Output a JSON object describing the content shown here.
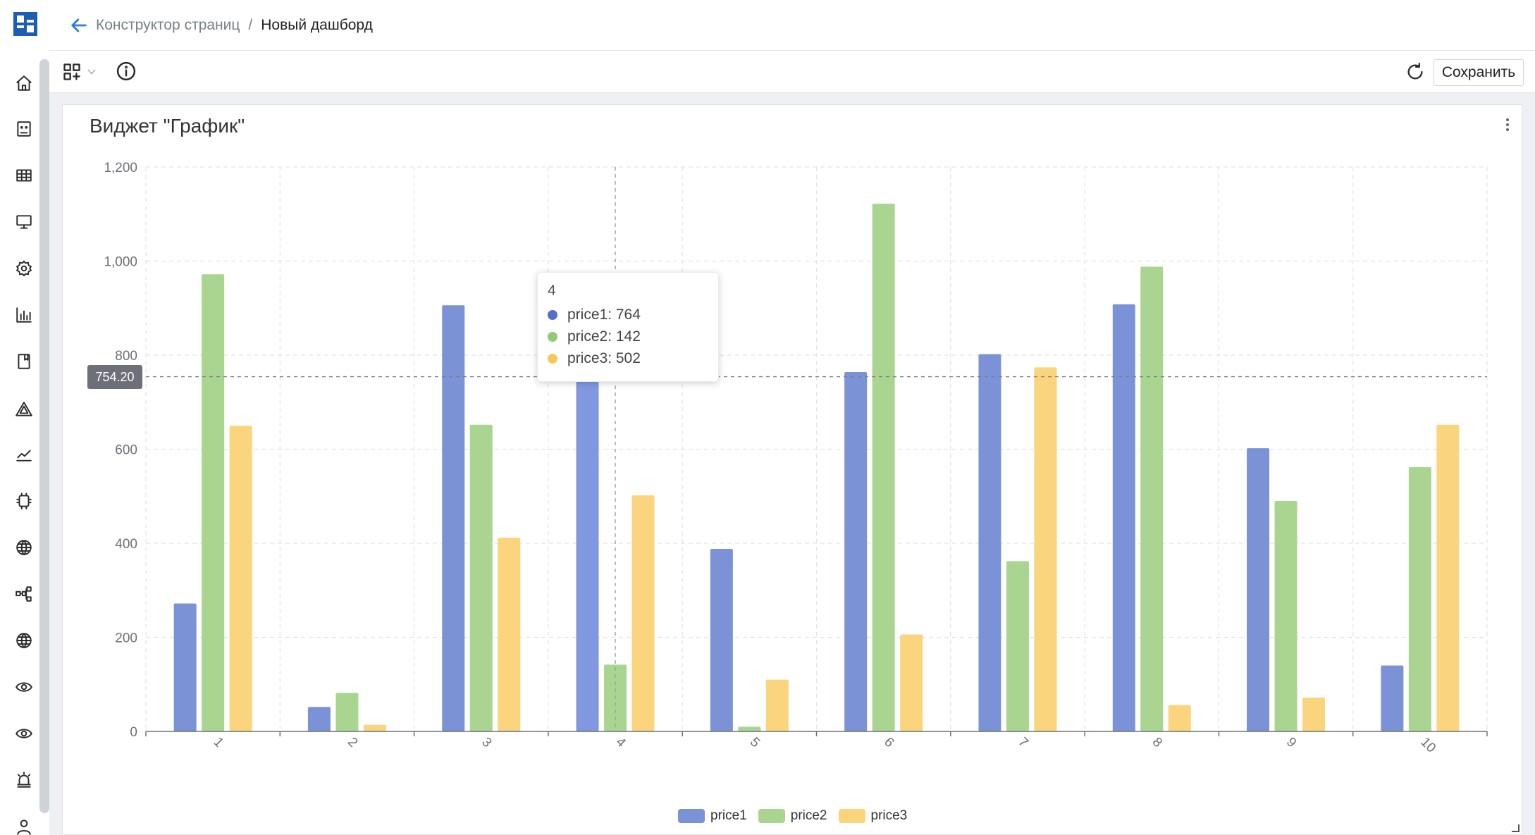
{
  "header": {
    "breadcrumb_parent": "Конструктор страниц",
    "breadcrumb_separator": "/",
    "breadcrumb_current": "Новый дашборд"
  },
  "toolbar": {
    "save_label": "Сохранить"
  },
  "sidebar": {
    "icons": [
      "home-icon",
      "dashboard-icon",
      "table-icon",
      "monitor-icon",
      "settings-icon",
      "bar-chart-icon",
      "book-icon",
      "alert-triangle-icon",
      "trend-line-icon",
      "chip-icon",
      "globe-icon",
      "network-icon",
      "globe-icon",
      "eye-icon",
      "eye-icon",
      "siren-icon",
      "user-icon"
    ]
  },
  "widget": {
    "title": "Виджет \"График\""
  },
  "tooltip": {
    "title": "4",
    "rows": [
      {
        "label": "price1: 764"
      },
      {
        "label": "price2: 142"
      },
      {
        "label": "price3: 502"
      }
    ]
  },
  "crosshair": {
    "label": "754.20",
    "value": 754.2
  },
  "colors": {
    "accent": "#2f7de1",
    "price1": "#5470c6",
    "price2": "#91cc75",
    "price3": "#fac858"
  },
  "chart_data": {
    "type": "bar",
    "categories": [
      "1",
      "2",
      "3",
      "4",
      "5",
      "6",
      "7",
      "8",
      "9",
      "10"
    ],
    "series": [
      {
        "name": "price1",
        "values": [
          272,
          52,
          906,
          764,
          388,
          764,
          802,
          908,
          602,
          140
        ]
      },
      {
        "name": "price2",
        "values": [
          972,
          82,
          652,
          142,
          10,
          1122,
          362,
          988,
          490,
          562
        ]
      },
      {
        "name": "price3",
        "values": [
          650,
          14,
          412,
          502,
          110,
          206,
          774,
          56,
          72,
          652
        ]
      }
    ],
    "yticks": [
      "0",
      "200",
      "400",
      "600",
      "800",
      "1,000",
      "1,200"
    ],
    "ylim": [
      0,
      1200
    ],
    "grid": true,
    "legend_position": "bottom-center",
    "title": "",
    "xlabel": "",
    "ylabel": ""
  }
}
